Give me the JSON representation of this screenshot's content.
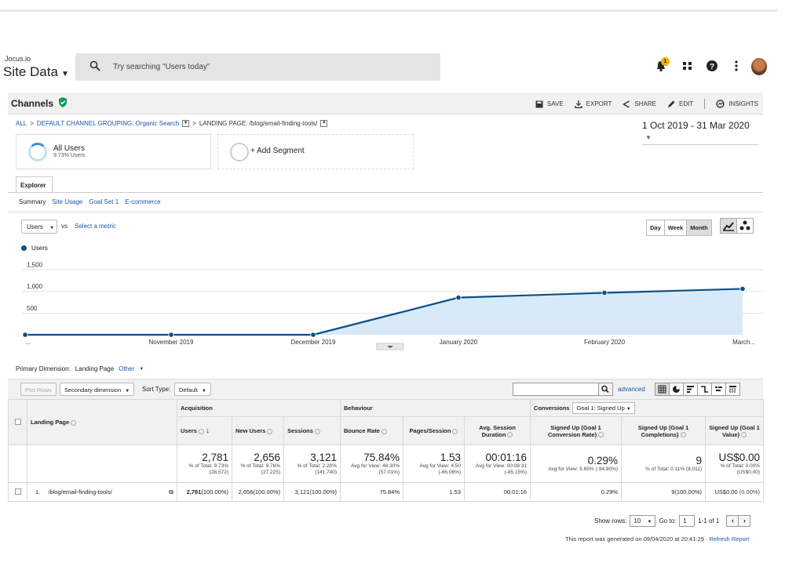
{
  "app": {
    "account": "Jocus.io",
    "property_view": "Site Data",
    "search_placeholder": "Try searching \"Users today\"",
    "notification_count": "1"
  },
  "report": {
    "title": "Channels",
    "actions": {
      "save": "SAVE",
      "export": "EXPORT",
      "share": "SHARE",
      "edit": "EDIT",
      "insights": "INSIGHTS"
    },
    "breadcrumb": {
      "all": "ALL",
      "grouping": "DEFAULT CHANNEL GROUPING: Organic Search",
      "landing": "LANDING PAGE: /blog/email-finding-tools/"
    },
    "date_range": "1 Oct 2019 - 31 Mar 2020",
    "segments": [
      {
        "label": "All Users",
        "sub": "9.73% Users"
      },
      {
        "label": "+ Add Segment",
        "sub": ""
      }
    ]
  },
  "explorer": {
    "tab": "Explorer",
    "subtabs": [
      "Summary",
      "Site Usage",
      "Goal Set 1",
      "E-commerce"
    ],
    "metric": "Users",
    "vs": "vs",
    "select_metric": "Select a metric",
    "periods": [
      "Day",
      "Week",
      "Month"
    ],
    "selected_period": "Month"
  },
  "chart_data": {
    "type": "area",
    "series": [
      {
        "name": "Users",
        "values": [
          0,
          0,
          0,
          850,
          960,
          1050
        ]
      }
    ],
    "x": [
      "...",
      "November 2019",
      "December 2019",
      "January 2020",
      "February 2020",
      "March..."
    ],
    "y_ticks": [
      "1,500",
      "1,000",
      "500"
    ],
    "ylim": [
      0,
      1650
    ],
    "color": "#0b4f8a",
    "fill": "#d6ebf7",
    "legend": "top-left"
  },
  "dimensions": {
    "primary_label": "Primary Dimension:",
    "primary_value": "Landing Page",
    "other": "Other"
  },
  "toolbar": {
    "plot_rows": "Plot Rows",
    "secondary_dimension": "Secondary dimension",
    "sort_type_label": "Sort Type:",
    "sort_type": "Default",
    "advanced": "advanced"
  },
  "table": {
    "landing_page_header": "Landing Page",
    "groups": {
      "acquisition": "Acquisition",
      "behaviour": "Behaviour",
      "conversions": "Conversions",
      "goal": "Goal 1: Signed Up"
    },
    "columns": [
      "Users",
      "New Users",
      "Sessions",
      "Bounce Rate",
      "Pages/Session",
      "Avg. Session Duration",
      "Signed Up (Goal 1 Conversion Rate)",
      "Signed Up (Goal 1 Completions)",
      "Signed Up (Goal 1 Value)"
    ],
    "totals": [
      {
        "big": "2,781",
        "small": "% of Total: 9.73% (28,572)"
      },
      {
        "big": "2,656",
        "small": "% of Total: 9.76% (27,225)"
      },
      {
        "big": "3,121",
        "small": "% of Total: 2.20% (141,740)"
      },
      {
        "big": "75.84%",
        "small": "Avg for View: 48.30% (57.01%)"
      },
      {
        "big": "1.53",
        "small": "Avg for View: 4.50 (-66.06%)"
      },
      {
        "big": "00:01:16",
        "small": "Avg for View: 00:08:31 (-85.15%)"
      },
      {
        "big": "0.29%",
        "small": "Avg for View: 5.65% (-94.90%)"
      },
      {
        "big": "9",
        "small": "% of Total: 0.11% (8,011)"
      },
      {
        "big": "US$0.00",
        "small": "% of Total: 0.00% (US$0.00)"
      }
    ],
    "rows": [
      {
        "index": "1.",
        "page": "/blog/email-finding-tools/",
        "cells": [
          "2,781",
          "(100.00%)",
          "2,656",
          "(100.00%)",
          "3,121",
          "(100.00%)",
          "75.84%",
          "1.53",
          "00:01:16",
          "0.29%",
          "9",
          "(100.00%)",
          "US$0.00",
          "(0.00%)"
        ]
      }
    ]
  },
  "pager": {
    "show_rows_label": "Show rows:",
    "show_rows": "10",
    "goto_label": "Go to:",
    "goto": "1",
    "range": "1-1 of 1"
  },
  "footer": {
    "generated": "This report was generated on 09/04/2020 at 20:41:29 ·",
    "refresh": "Refresh Report"
  }
}
